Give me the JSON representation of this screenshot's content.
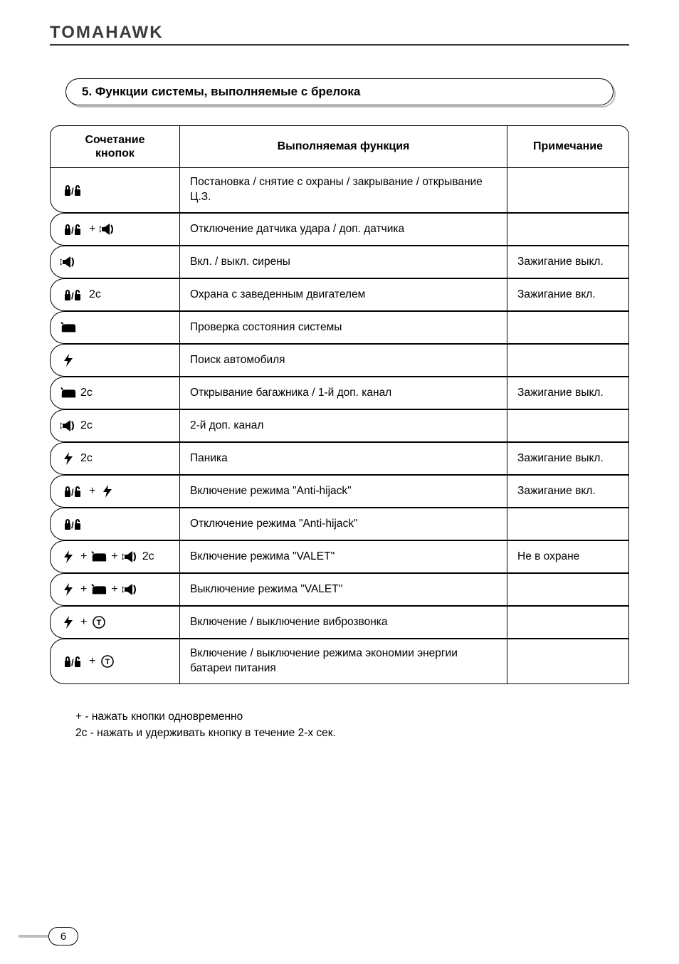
{
  "brand": "TOMAHAWK",
  "section_title": "5. Функции системы, выполняемые с брелока",
  "table": {
    "headers": {
      "col1_line1": "Сочетание",
      "col1_line2": "кнопок",
      "col2": "Выполняемая функция",
      "col3": "Примечание"
    },
    "rows": [
      {
        "combo": [
          {
            "icon": "lock"
          }
        ],
        "func": "Постановка / снятие с охраны / закрывание / открывание  Ц.З.",
        "note": ""
      },
      {
        "combo": [
          {
            "icon": "lock"
          },
          {
            "plus": true
          },
          {
            "icon": "siren"
          }
        ],
        "func": "Отключение датчика удара / доп. датчика",
        "note": ""
      },
      {
        "combo": [
          {
            "icon": "siren"
          }
        ],
        "func": "Вкл. / выкл. сирены",
        "note": "Зажигание выкл."
      },
      {
        "combo": [
          {
            "icon": "lock"
          },
          {
            "dur": "2с"
          }
        ],
        "func": "Охрана с заведенным двигателем",
        "note": "Зажигание вкл."
      },
      {
        "combo": [
          {
            "icon": "trunk"
          }
        ],
        "func": "Проверка состояния системы",
        "note": ""
      },
      {
        "combo": [
          {
            "icon": "bolt"
          }
        ],
        "func": "Поиск автомобиля",
        "note": ""
      },
      {
        "combo": [
          {
            "icon": "trunk"
          },
          {
            "dur": "2с"
          }
        ],
        "func": "Открывание багажника / 1-й доп. канал",
        "note": "Зажигание выкл."
      },
      {
        "combo": [
          {
            "icon": "siren"
          },
          {
            "dur": "2с"
          }
        ],
        "func": "2-й доп. канал",
        "note": ""
      },
      {
        "combo": [
          {
            "icon": "bolt"
          },
          {
            "dur": "2с"
          }
        ],
        "func": "Паника",
        "note": "Зажигание выкл."
      },
      {
        "combo": [
          {
            "icon": "lock"
          },
          {
            "plus": true
          },
          {
            "icon": "bolt"
          }
        ],
        "func": "Включение режима \"Anti-hijack\"",
        "note": "Зажигание вкл."
      },
      {
        "combo": [
          {
            "icon": "lock"
          }
        ],
        "func": "Отключение режима \"Anti-hijack\"",
        "note": ""
      },
      {
        "combo": [
          {
            "icon": "bolt"
          },
          {
            "plus": true
          },
          {
            "icon": "trunk"
          },
          {
            "plus": true
          },
          {
            "icon": "siren"
          },
          {
            "dur": "2с"
          }
        ],
        "func": "Включение режима \"VALET\"",
        "note": "Не в охране"
      },
      {
        "combo": [
          {
            "icon": "bolt"
          },
          {
            "plus": true
          },
          {
            "icon": "trunk"
          },
          {
            "plus": true
          },
          {
            "icon": "siren"
          }
        ],
        "func": "Выключение режима \"VALET\"",
        "note": ""
      },
      {
        "combo": [
          {
            "icon": "bolt"
          },
          {
            "plus": true
          },
          {
            "icon": "clock"
          }
        ],
        "func": "Включение / выключение виброзвонка",
        "note": ""
      },
      {
        "combo": [
          {
            "icon": "lock"
          },
          {
            "plus": true
          },
          {
            "icon": "clock"
          }
        ],
        "func": "Включение / выключение режима экономии энергии батареи питания",
        "note": ""
      }
    ]
  },
  "legend": {
    "line1": "+   - нажать кнопки одновременно",
    "line2": "2с - нажать и удерживать кнопку в течение 2-х сек."
  },
  "page_number": "6",
  "icons": {
    "lock_label": "lock-unlock-icon",
    "siren_label": "siren-icon",
    "trunk_label": "trunk-icon",
    "bolt_label": "bolt-icon",
    "clock_label": "clock-icon"
  },
  "colors": {
    "text": "#000000",
    "brand": "#3a3a3a",
    "shadow": "#b9b9b9",
    "pagebar": "#bdbdbd",
    "bg": "#ffffff"
  }
}
